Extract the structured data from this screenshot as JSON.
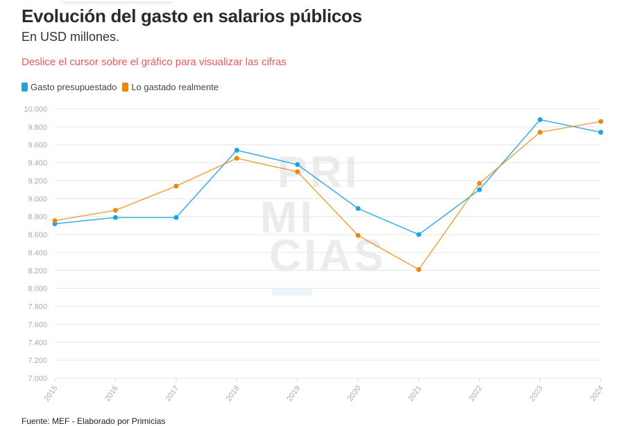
{
  "header": {
    "title": "Evolución del gasto en salarios públicos",
    "subtitle": "En USD millones.",
    "hint": "Deslice el cursor sobre el gráfico para visualizar las cifras"
  },
  "watermark": "PRI MI CIAS",
  "source": "Fuente: MEF - Elaborado por Primicias",
  "chart_data": {
    "type": "line",
    "title": "Evolución del gasto en salarios públicos",
    "ylabel": "En USD millones.",
    "x": [
      "2015",
      "2016",
      "2017",
      "2018",
      "2019",
      "2020",
      "2021",
      "2022",
      "2023",
      "2024"
    ],
    "ylim": [
      7000,
      10000
    ],
    "yticks": [
      "7.000",
      "7.200",
      "7.400",
      "7.600",
      "7.800",
      "8.000",
      "8.200",
      "8.400",
      "8.600",
      "8.800",
      "9.000",
      "9.200",
      "9.400",
      "9.600",
      "9.800",
      "10.000"
    ],
    "grid": true,
    "legend": "top-left",
    "series": [
      {
        "name": "Gasto presupuestado",
        "color": "#1aa6dd",
        "values": [
          8720,
          8790,
          8790,
          9540,
          9380,
          8890,
          8600,
          9100,
          9880,
          9740
        ]
      },
      {
        "name": "Lo gastado realmente",
        "color": "#e98a10",
        "values": [
          8755,
          8870,
          9140,
          9450,
          9300,
          8590,
          8210,
          9170,
          9740,
          9860
        ]
      }
    ]
  }
}
